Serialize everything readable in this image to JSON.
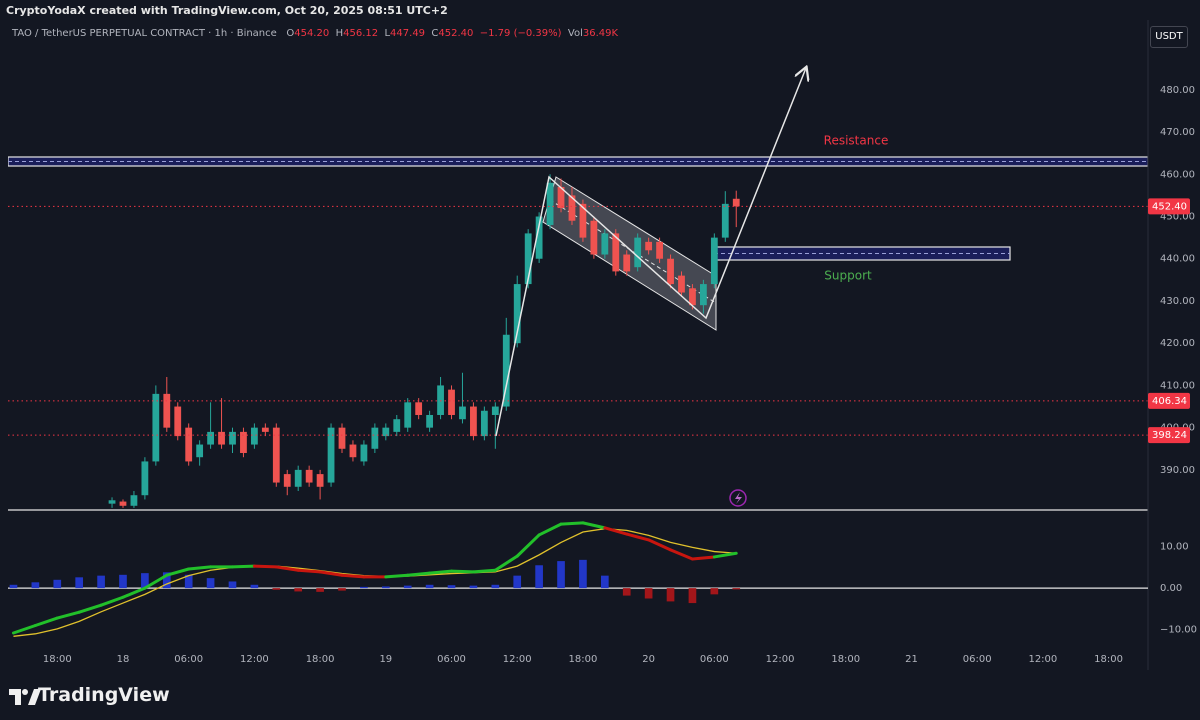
{
  "header": {
    "attribution": "CryptoYodaX created with TradingView.com, Oct 20, 2025 08:51 UTC+2",
    "symbol": "TAO / TetherUS PERPETUAL CONTRACT · 1h · Binance",
    "ohlc": [
      {
        "label": "O",
        "value": "454.20"
      },
      {
        "label": "H",
        "value": "456.12"
      },
      {
        "label": "L",
        "value": "447.49"
      },
      {
        "label": "C",
        "value": "452.40"
      }
    ],
    "change": "−1.79 (−0.39%)",
    "volume_label": "Vol",
    "volume": "36.49K"
  },
  "currency_button": "USDT",
  "brand": "TradingView",
  "chart_data": [
    {
      "type": "candlestick",
      "x": [
        -1,
        0,
        1,
        2,
        3,
        4,
        5,
        6,
        7,
        8,
        9,
        10,
        11,
        12,
        13,
        14,
        15,
        16,
        17,
        18,
        19,
        20,
        21,
        22,
        23,
        24,
        25,
        26,
        27,
        28,
        29,
        30,
        31,
        32,
        33,
        34,
        35,
        36,
        37,
        38,
        39,
        40,
        41,
        42,
        43,
        44,
        45,
        46,
        47,
        48,
        49,
        50,
        51,
        52,
        53,
        54,
        55,
        56
      ],
      "open": [
        382,
        382.5,
        381.5,
        384,
        392,
        408,
        405,
        400,
        393,
        396,
        399,
        396,
        399,
        396,
        400,
        400,
        389,
        386,
        390,
        389,
        387,
        400,
        396,
        392,
        395,
        398,
        399,
        400,
        406,
        400,
        403,
        409,
        402,
        405,
        398,
        403,
        405,
        420,
        434,
        440,
        448,
        457,
        455,
        453,
        449,
        441,
        446,
        441,
        438,
        444,
        444,
        440,
        436,
        433,
        429,
        434,
        445,
        454.2
      ],
      "high": [
        383.5,
        383,
        385,
        393,
        410,
        412,
        406,
        401,
        397,
        406,
        407,
        400,
        400,
        401,
        401,
        401,
        390,
        391,
        391,
        390,
        401,
        401,
        397,
        397,
        401,
        401,
        403,
        407,
        407,
        404,
        412,
        410,
        413,
        406,
        405,
        406,
        426,
        436,
        447,
        451,
        460,
        459,
        457,
        454,
        450,
        447,
        447,
        442,
        446,
        445,
        445,
        441,
        437,
        434,
        435,
        446,
        456,
        456.12
      ],
      "low": [
        381,
        381,
        381,
        383,
        391,
        399,
        397,
        391,
        391,
        395,
        395,
        394,
        393,
        395,
        398,
        386,
        384,
        385,
        386,
        383,
        386,
        394,
        392,
        391,
        394,
        397,
        398,
        399,
        402,
        399,
        402,
        402,
        401,
        397,
        397,
        395,
        404,
        419,
        433,
        439,
        447,
        451,
        448,
        444,
        440,
        440,
        436,
        436,
        437,
        441,
        439,
        433,
        431,
        428,
        427,
        433,
        444,
        447.49
      ],
      "close": [
        382.8,
        381.5,
        384,
        392,
        408,
        400,
        398,
        392,
        396,
        399,
        396,
        399,
        394,
        400,
        399,
        387,
        386,
        390,
        387,
        386,
        400,
        395,
        393,
        396,
        400,
        400,
        402,
        406,
        403,
        403,
        410,
        403,
        405,
        398,
        404,
        405,
        422,
        434,
        446,
        450,
        458,
        452,
        449,
        445,
        441,
        446,
        437,
        437,
        445,
        442,
        440,
        434,
        432,
        429,
        434,
        445,
        453,
        452.4
      ],
      "up_color": "#26a69a",
      "down_color": "#ef5350",
      "xlim": [
        -10.5,
        93.6
      ],
      "ylim": [
        380.5,
        491.8
      ],
      "yticks": [
        {
          "value": 480,
          "label": "480.00"
        },
        {
          "value": 470,
          "label": "470.00"
        },
        {
          "value": 460,
          "label": "460.00"
        },
        {
          "value": 450,
          "label": "450.00"
        },
        {
          "value": 440,
          "label": "440.00"
        },
        {
          "value": 430,
          "label": "430.00"
        },
        {
          "value": 420,
          "label": "420.00"
        },
        {
          "value": 410,
          "label": "410.00"
        },
        {
          "value": 400,
          "label": "400.00"
        },
        {
          "value": 390,
          "label": "390.00"
        }
      ],
      "price_lines": [
        {
          "value": 452.4,
          "label": "452.40",
          "color": "#f23645"
        },
        {
          "value": 406.34,
          "label": "406.34",
          "color": "#f23645"
        },
        {
          "value": 398.24,
          "label": "398.24",
          "color": "#f23645"
        }
      ],
      "annotations": [
        {
          "text": "Resistance",
          "color": "#f23645"
        },
        {
          "text": "Support",
          "color": "#4caf50"
        }
      ]
    },
    {
      "type": "macd",
      "x": [
        -10,
        -8,
        -6,
        -4,
        -2,
        0,
        2,
        4,
        6,
        8,
        10,
        12,
        14,
        16,
        18,
        20,
        22,
        24,
        26,
        28,
        30,
        32,
        34,
        36,
        38,
        40,
        42,
        44,
        46,
        48,
        50,
        52,
        54,
        56
      ],
      "macd": [
        -10.8,
        -9,
        -7.2,
        -5.8,
        -4.1,
        -2.2,
        0,
        3.1,
        4.6,
        5.1,
        5.1,
        5.3,
        5.1,
        4.3,
        3.9,
        3.1,
        2.7,
        2.7,
        3.1,
        3.6,
        4.1,
        3.9,
        4.3,
        7.7,
        12.8,
        15.4,
        15.7,
        14.5,
        13,
        11.6,
        9.2,
        7,
        7.5,
        8.4
      ],
      "signal": [
        -11.6,
        -11,
        -9.8,
        -8,
        -5.7,
        -3.6,
        -1.5,
        1,
        3,
        4.3,
        5,
        5.3,
        5.3,
        4.8,
        4.2,
        3.5,
        3,
        2.8,
        2.9,
        3.2,
        3.5,
        3.7,
        3.9,
        5.3,
        8,
        11,
        13.5,
        14.3,
        13.9,
        12.7,
        11,
        9.8,
        8.8,
        8.4
      ],
      "histogram": [
        0.8,
        1.4,
        2,
        2.6,
        3,
        3.2,
        3.6,
        3.8,
        3.2,
        2.4,
        1.6,
        0.8,
        -0.4,
        -0.8,
        -0.9,
        -0.6,
        0.3,
        0.4,
        0.6,
        0.8,
        0.7,
        0.6,
        0.8,
        3,
        5.5,
        6.5,
        6.8,
        3,
        -1.8,
        -2.5,
        -3.2,
        -3.6,
        -1.5,
        -0.3
      ],
      "macd_up_color": "#22c02a",
      "macd_down_color": "#c8160f",
      "signal_color": "#e0c12c",
      "hist_up_color": "#2237c8",
      "hist_down_color": "#a3161a",
      "xlim": [
        -10.5,
        93.6
      ],
      "ylim": [
        -17.3,
        18.8
      ],
      "yticks": [
        {
          "value": 10,
          "label": "10.00"
        },
        {
          "value": 0,
          "label": "0.00"
        },
        {
          "value": -10,
          "label": "−10.00"
        }
      ],
      "xticks": [
        {
          "value": -6,
          "label": "18:00"
        },
        {
          "value": 0,
          "label": "18"
        },
        {
          "value": 6,
          "label": "06:00"
        },
        {
          "value": 12,
          "label": "12:00"
        },
        {
          "value": 18,
          "label": "18:00"
        },
        {
          "value": 24,
          "label": "19"
        },
        {
          "value": 30,
          "label": "06:00"
        },
        {
          "value": 36,
          "label": "12:00"
        },
        {
          "value": 42,
          "label": "18:00"
        },
        {
          "value": 48,
          "label": "20"
        },
        {
          "value": 54,
          "label": "06:00"
        },
        {
          "value": 60,
          "label": "12:00"
        },
        {
          "value": 66,
          "label": "18:00"
        },
        {
          "value": 72,
          "label": "21"
        },
        {
          "value": 78,
          "label": "06:00"
        },
        {
          "value": 84,
          "label": "12:00"
        },
        {
          "value": 90,
          "label": "18:00"
        }
      ]
    }
  ]
}
